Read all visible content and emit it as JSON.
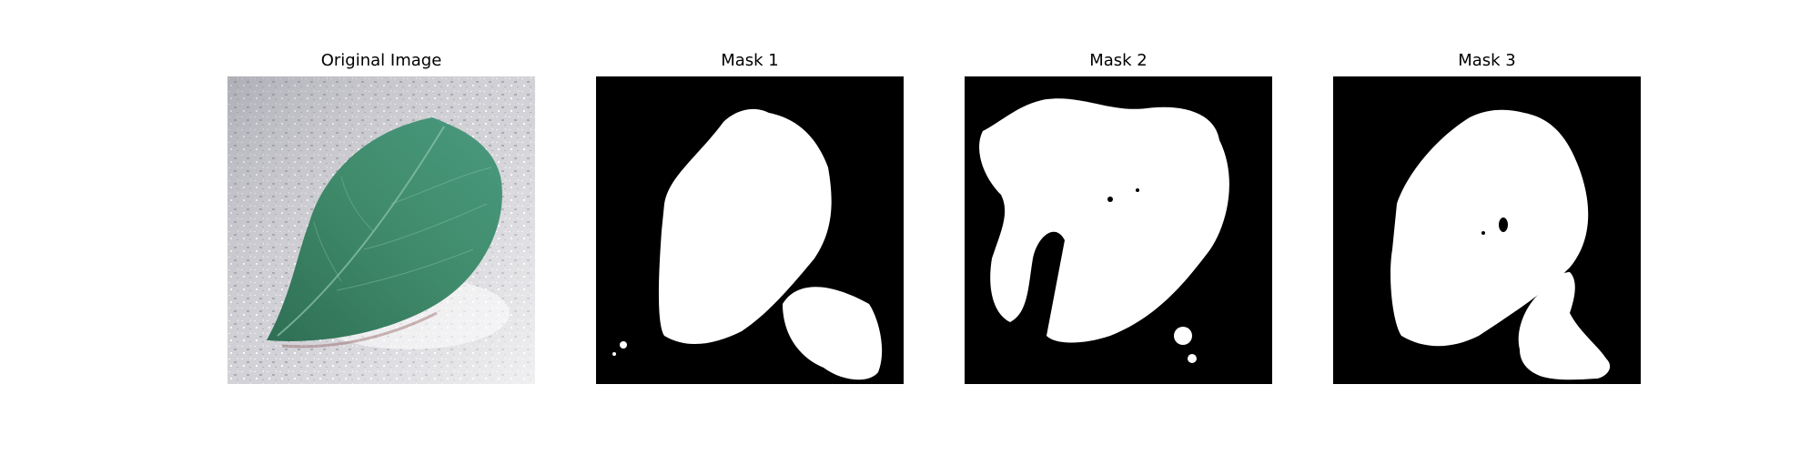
{
  "panels": [
    {
      "title": "Original Image"
    },
    {
      "title": "Mask 1"
    },
    {
      "title": "Mask 2"
    },
    {
      "title": "Mask 3"
    }
  ],
  "colors": {
    "mask_background": "#000000",
    "mask_foreground": "#ffffff",
    "leaf": "#3f8a6a",
    "photo_background": "#c9c9cf"
  }
}
